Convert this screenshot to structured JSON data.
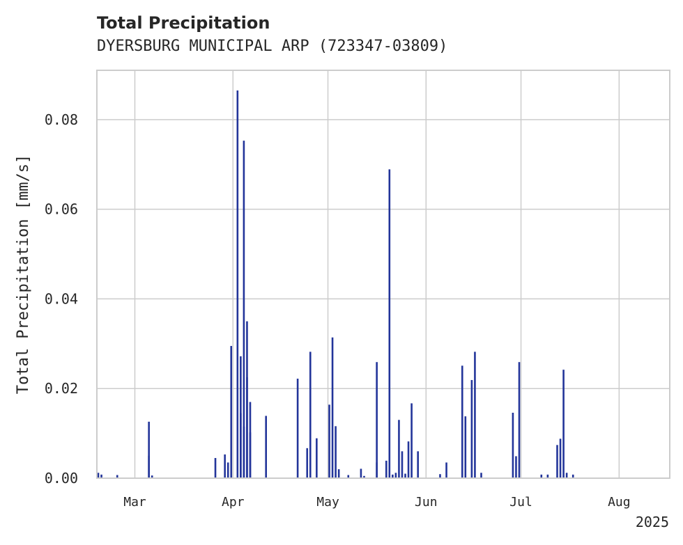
{
  "chart_data": {
    "type": "bar",
    "title": "Total Precipitation",
    "subtitle": "DYERSBURG MUNICIPAL ARP (723347-03809)",
    "ylabel": "Total Precipitation [mm/s]",
    "xlabel": "",
    "year_label": "2025",
    "ylim": [
      0,
      0.091
    ],
    "xlim": [
      "2025-02-17",
      "2025-08-17"
    ],
    "grid": true,
    "y_ticks": [
      {
        "value": 0.0,
        "label": "0.00"
      },
      {
        "value": 0.02,
        "label": "0.02"
      },
      {
        "value": 0.04,
        "label": "0.04"
      },
      {
        "value": 0.06,
        "label": "0.06"
      },
      {
        "value": 0.08,
        "label": "0.08"
      }
    ],
    "x_ticks": [
      {
        "date": "2025-03-01",
        "label": "Mar"
      },
      {
        "date": "2025-04-01",
        "label": "Apr"
      },
      {
        "date": "2025-05-01",
        "label": "May"
      },
      {
        "date": "2025-06-01",
        "label": "Jun"
      },
      {
        "date": "2025-07-01",
        "label": "Jul"
      },
      {
        "date": "2025-08-01",
        "label": "Aug"
      }
    ],
    "bar_color": "#23359a",
    "series": [
      {
        "x": [
          "2025-02-17",
          "2025-02-18",
          "2025-02-23",
          "2025-03-05",
          "2025-03-05",
          "2025-03-06",
          "2025-03-26",
          "2025-03-29",
          "2025-03-30",
          "2025-03-31",
          "2025-04-02",
          "2025-04-03",
          "2025-04-03",
          "2025-04-04",
          "2025-04-04",
          "2025-04-05",
          "2025-04-05",
          "2025-04-06",
          "2025-04-06",
          "2025-04-11",
          "2025-04-21",
          "2025-04-24",
          "2025-04-25",
          "2025-04-27",
          "2025-05-01",
          "2025-05-02",
          "2025-05-03",
          "2025-05-04",
          "2025-05-07",
          "2025-05-11",
          "2025-05-12",
          "2025-05-16",
          "2025-05-16",
          "2025-05-19",
          "2025-05-20",
          "2025-05-21",
          "2025-05-22",
          "2025-05-23",
          "2025-05-24",
          "2025-05-25",
          "2025-05-26",
          "2025-05-27",
          "2025-05-29",
          "2025-06-05",
          "2025-06-07",
          "2025-06-12",
          "2025-06-13",
          "2025-06-15",
          "2025-06-16",
          "2025-06-18",
          "2025-06-28",
          "2025-06-29",
          "2025-06-30",
          "2025-07-07",
          "2025-07-09",
          "2025-07-12",
          "2025-07-13",
          "2025-07-14",
          "2025-07-15",
          "2025-07-17"
        ],
        "values": [
          0.0012,
          0.0008,
          0.0007,
          0.005,
          0.0126,
          0.0006,
          0.0045,
          0.0053,
          0.0035,
          0.0295,
          0.0865,
          0.0145,
          0.0272,
          0.0115,
          0.0753,
          0.035,
          0.0225,
          0.017,
          0.0102,
          0.0139,
          0.0222,
          0.0067,
          0.0282,
          0.0089,
          0.0164,
          0.0314,
          0.0116,
          0.002,
          0.0007,
          0.0021,
          0.0005,
          0.0035,
          0.0259,
          0.0039,
          0.0689,
          0.0008,
          0.0012,
          0.013,
          0.006,
          0.001,
          0.0082,
          0.0167,
          0.006,
          0.0009,
          0.0035,
          0.0251,
          0.0138,
          0.0219,
          0.0282,
          0.0012,
          0.0146,
          0.0049,
          0.0259,
          0.0008,
          0.0008,
          0.0074,
          0.0088,
          0.0242,
          0.0012,
          0.0008
        ]
      }
    ]
  }
}
